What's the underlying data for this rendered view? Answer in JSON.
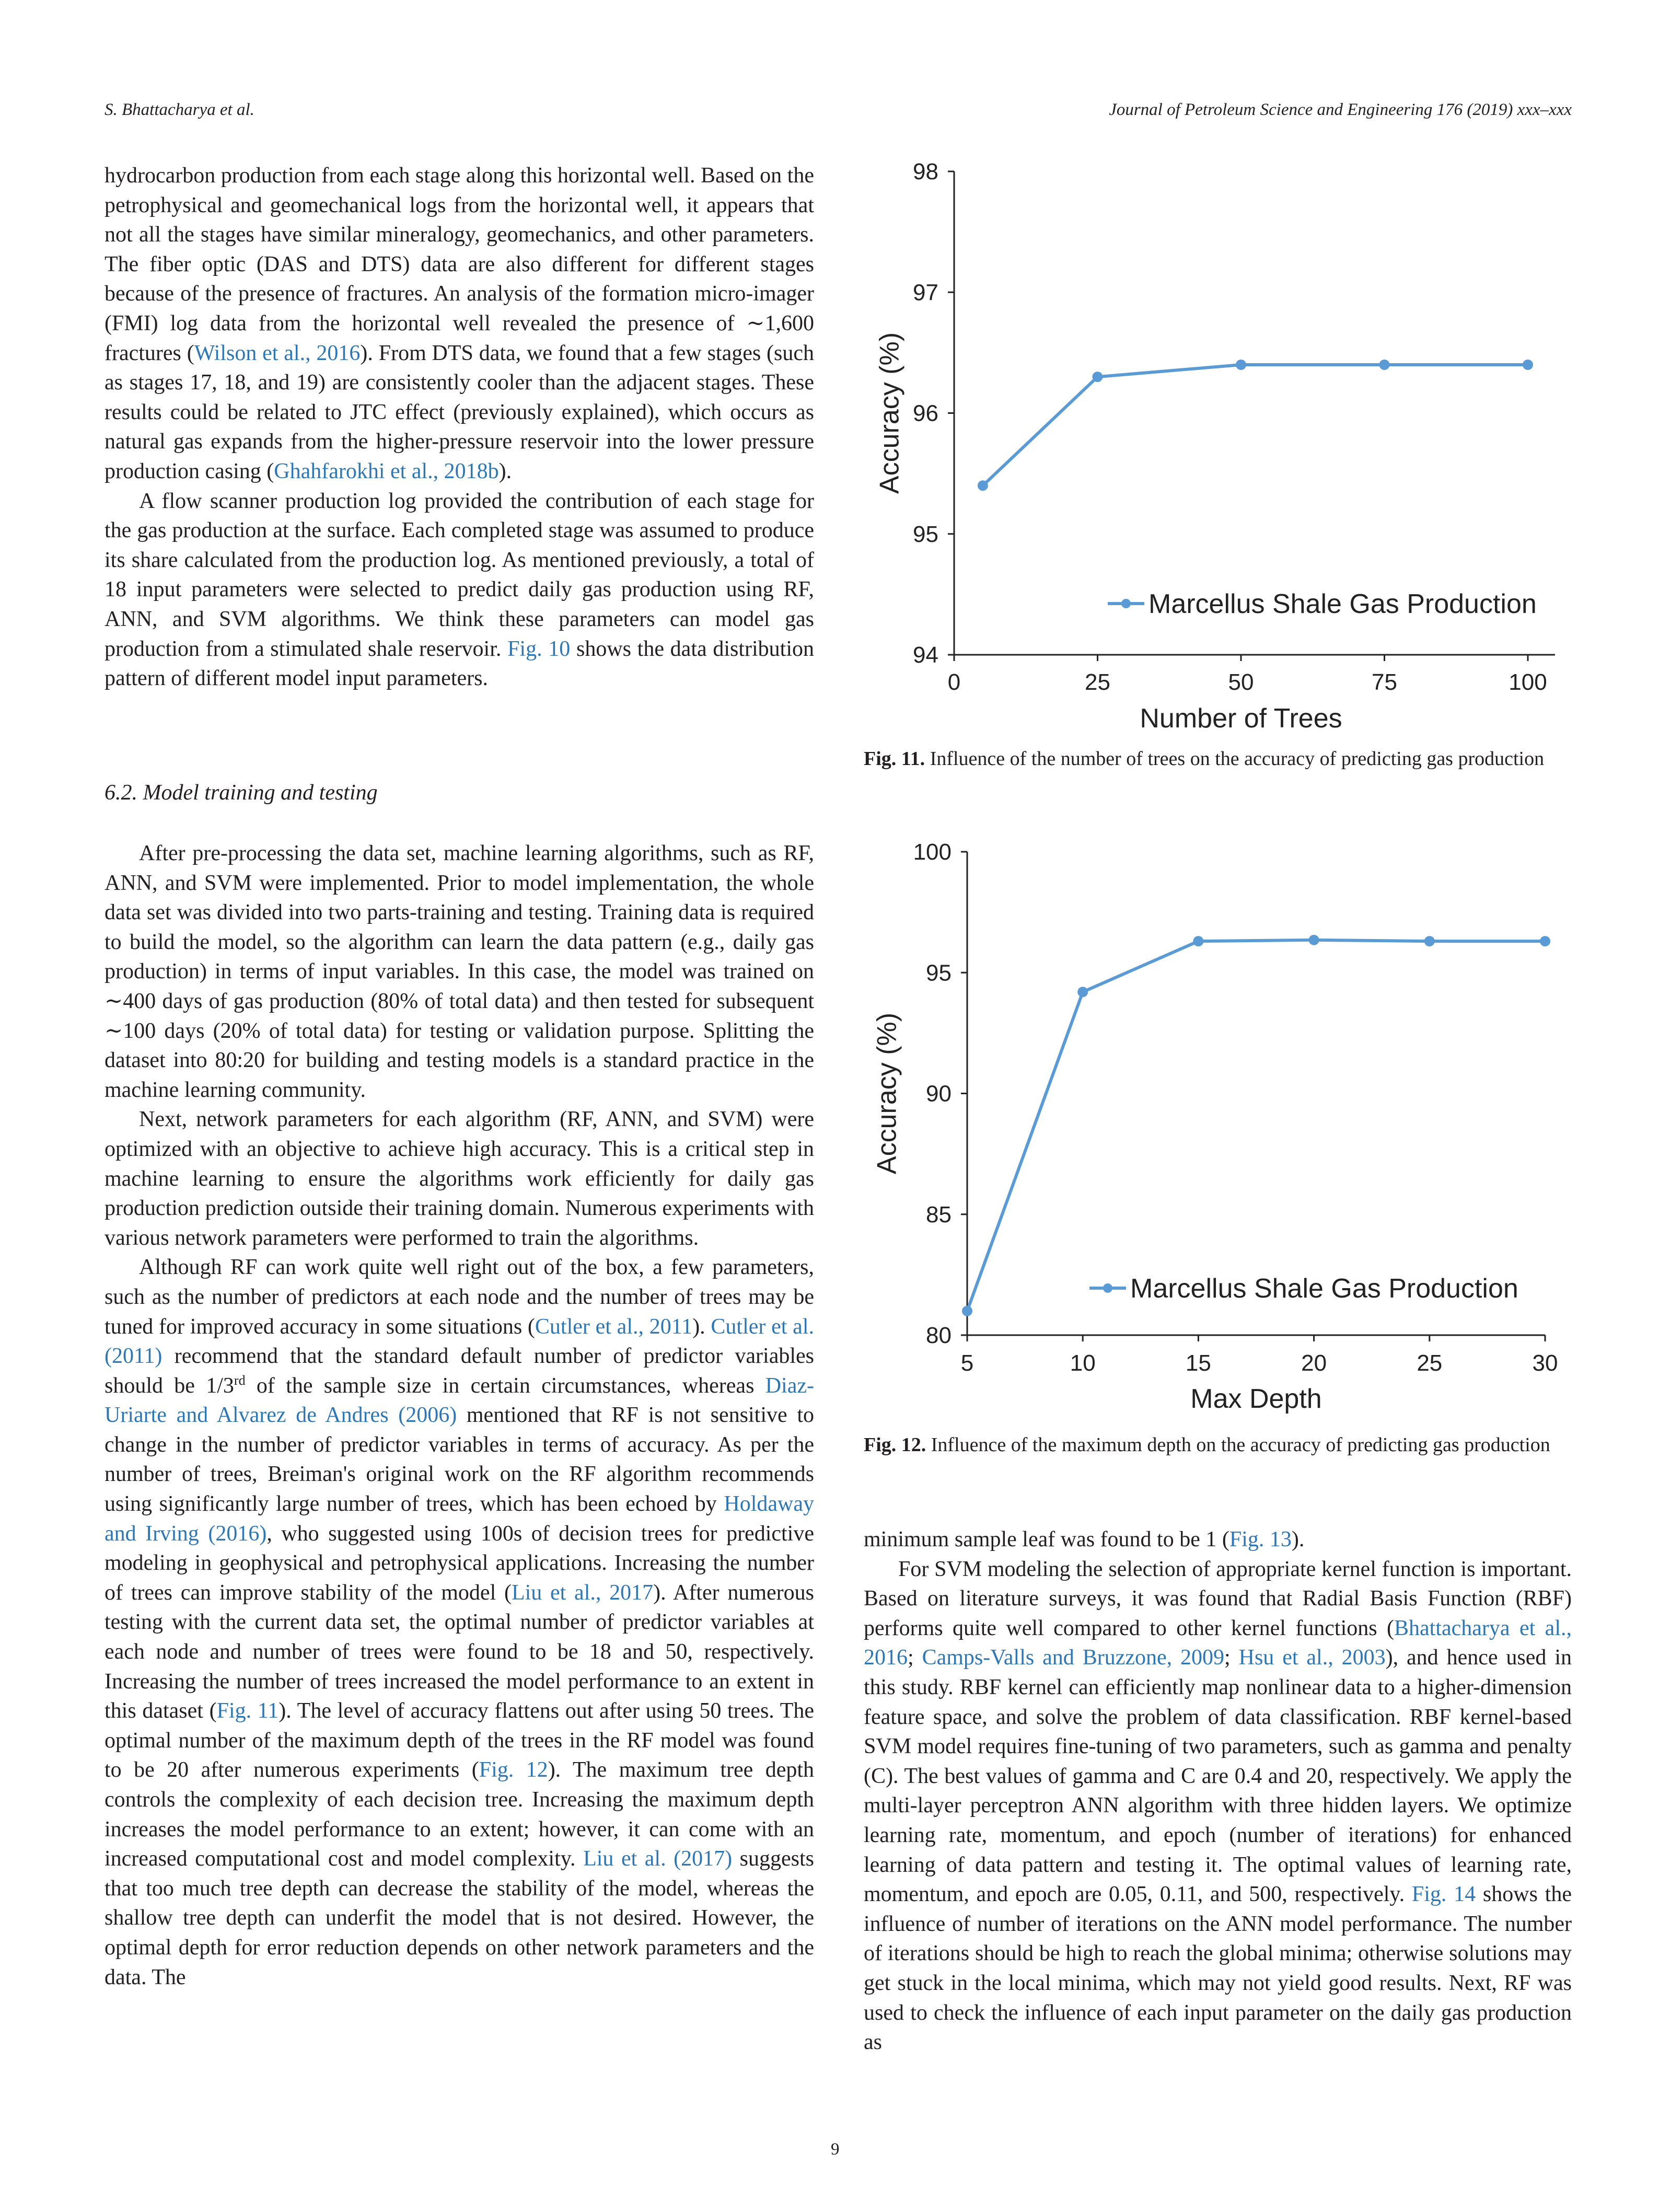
{
  "header": {
    "left": "S. Bhattacharya et al.",
    "right": "Journal of Petroleum Science and Engineering 176 (2019) xxx–xxx"
  },
  "left_column": {
    "paragraphs": [
      {
        "indent": false,
        "segments": [
          {
            "t": "hydrocarbon production from each stage along this horizontal well. Based on the petrophysical and geomechanical logs from the horizontal well, it appears that not all the stages have similar mineralogy, geomechanics, and other parameters. The fiber optic (DAS and DTS) data are also different for different stages because of the presence of fractures. An analysis of the formation micro-imager (FMI) log data from the horizontal well revealed the presence of ∼1,600 fractures ("
          },
          {
            "t": "Wilson et al., 2016",
            "link": true
          },
          {
            "t": "). From DTS data, we found that a few stages (such as stages 17, 18, and 19) are consistently cooler than the adjacent stages. These results could be related to JTC effect (previously explained), which occurs as natural gas expands from the higher-pressure reservoir into the lower pressure production casing ("
          },
          {
            "t": "Ghahfarokhi et al., 2018b",
            "link": true
          },
          {
            "t": ")."
          }
        ]
      },
      {
        "indent": true,
        "segments": [
          {
            "t": "A flow scanner production log provided the contribution of each stage for the gas production at the surface. Each completed stage was assumed to produce its share calculated from the production log. As mentioned previously, a total of 18 input parameters were selected to predict daily gas production using RF, ANN, and SVM algorithms. We think these parameters can model gas production from a stimulated shale reservoir. "
          },
          {
            "t": "Fig. 10",
            "link": true
          },
          {
            "t": " shows the data distribution pattern of different model input parameters."
          }
        ]
      }
    ],
    "section_heading": "6.2.  Model training and testing",
    "paragraphs_after": [
      {
        "indent": true,
        "segments": [
          {
            "t": "After pre-processing the data set, machine learning algorithms, such as RF, ANN, and SVM were implemented. Prior to model implementation, the whole data set was divided into two parts-training and testing. Training data is required to build the model, so the algorithm can learn the data pattern (e.g., daily gas production) in terms of input variables. In this case, the model was trained on ∼400 days of gas production (80% of total data) and then tested for subsequent ∼100 days (20% of total data) for testing or validation purpose. Splitting the dataset into 80:20 for building and testing models is a standard practice in the machine learning community."
          }
        ]
      },
      {
        "indent": true,
        "segments": [
          {
            "t": "Next, network parameters for each algorithm (RF, ANN, and SVM) were optimized with an objective to achieve high accuracy. This is a critical step in machine learning to ensure the algorithms work efficiently for daily gas production prediction outside their training domain. Numerous experiments with various network parameters were performed to train the algorithms."
          }
        ]
      },
      {
        "indent": true,
        "segments": [
          {
            "t": "Although RF can work quite well right out of the box, a few parameters, such as the number of predictors at each node and the number of trees may be tuned for improved accuracy in some situations ("
          },
          {
            "t": "Cutler et al., 2011",
            "link": true
          },
          {
            "t": "). "
          },
          {
            "t": "Cutler et al. (2011)",
            "link": true
          },
          {
            "t": " recommend that the standard default number of predictor variables should be 1/3"
          },
          {
            "t": "rd",
            "sup": true
          },
          {
            "t": " of the sample size in certain circumstances, whereas "
          },
          {
            "t": "Diaz-Uriarte and Alvarez de Andres (2006)",
            "link": true
          },
          {
            "t": " mentioned that RF is not sensitive to change in the number of predictor variables in terms of accuracy. As per the number of trees, Breiman's original work on the RF algorithm recommends using significantly large number of trees, which has been echoed by "
          },
          {
            "t": "Holdaway and Irving (2016)",
            "link": true
          },
          {
            "t": ", who suggested using 100s of decision trees for predictive modeling in geophysical and petrophysical applications. Increasing the number of trees can improve stability of the model ("
          },
          {
            "t": "Liu et al., 2017",
            "link": true
          },
          {
            "t": "). After numerous testing with the current data set, the optimal number of predictor variables at each node and number of trees were found to be 18 and 50, respectively. Increasing the number of trees increased the model performance to an extent in this dataset ("
          },
          {
            "t": "Fig. 11",
            "link": true
          },
          {
            "t": "). The level of accuracy flattens out after using 50 trees. The optimal number of the maximum depth of the trees in the RF model was found to be 20 after numerous experiments ("
          },
          {
            "t": "Fig. 12",
            "link": true
          },
          {
            "t": "). The maximum tree depth controls the complexity of each decision tree. Increasing the maximum depth increases the model performance to an extent; however, it can come with an increased computational cost and model complexity. "
          },
          {
            "t": "Liu et al. (2017)",
            "link": true
          },
          {
            "t": " suggests that too much tree depth can decrease the stability of the model, whereas the shallow tree depth can underfit the model that is not desired. However, the optimal depth for error reduction depends on other network parameters and the data. The"
          }
        ]
      }
    ]
  },
  "right_column": {
    "paragraphs": [
      {
        "indent": false,
        "segments": [
          {
            "t": "minimum sample leaf was found to be 1 ("
          },
          {
            "t": "Fig. 13",
            "link": true
          },
          {
            "t": ")."
          }
        ]
      },
      {
        "indent": true,
        "segments": [
          {
            "t": "For SVM modeling the selection of appropriate kernel function is important. Based on literature surveys, it was found that Radial Basis Function (RBF) performs quite well compared to other kernel functions ("
          },
          {
            "t": "Bhattacharya et al., 2016",
            "link": true
          },
          {
            "t": "; "
          },
          {
            "t": "Camps-Valls and Bruzzone, 2009",
            "link": true
          },
          {
            "t": "; "
          },
          {
            "t": "Hsu et al., 2003",
            "link": true
          },
          {
            "t": "), and hence used in this study. RBF kernel can efficiently map nonlinear data to a higher-dimension feature space, and solve the problem of data classification. RBF kernel-based SVM model requires fine-tuning of two parameters, such as gamma and penalty (C). The best values of gamma and C are 0.4 and 20, respectively. We apply the multi-layer perceptron ANN algorithm with three hidden layers. We optimize learning rate, momentum, and epoch (number of iterations) for enhanced learning of data pattern and testing it. The optimal values of learning rate, momentum, and epoch are 0.05, 0.11, and 500, respectively. "
          },
          {
            "t": "Fig. 14",
            "link": true
          },
          {
            "t": " shows the influence of number of iterations on the ANN model performance. The number of iterations should be high to reach the global minima; otherwise solutions may get stuck in the local minima, which may not yield good results. Next, RF was used to check the influence of each input parameter on the daily gas production as"
          }
        ]
      }
    ]
  },
  "figures": [
    {
      "label": "Fig. 11.",
      "caption": " Influence of the number of trees on the accuracy of predicting gas production"
    },
    {
      "label": "Fig. 12.",
      "caption": " Influence of the maximum depth on the accuracy of predicting gas production"
    }
  ],
  "page_number": "9",
  "colors": {
    "series": "#5b9bd5",
    "link": "#2e77b5"
  },
  "chart_data": [
    {
      "type": "line",
      "title": "",
      "xlabel": "Number of Trees",
      "ylabel": "Accuracy  (%)",
      "x": [
        5,
        25,
        50,
        75,
        100
      ],
      "series": [
        {
          "name": "Marcellus Shale Gas Production",
          "values": [
            95.4,
            96.3,
            96.4,
            96.4,
            96.4
          ]
        }
      ],
      "xlim": [
        0,
        100
      ],
      "ylim": [
        94,
        98
      ],
      "xticks": [
        "0",
        "25",
        "50",
        "75",
        "100"
      ],
      "yticks": [
        "94",
        "95",
        "96",
        "97",
        "98"
      ],
      "grid": false,
      "legend": "bottom-right"
    },
    {
      "type": "line",
      "title": "",
      "xlabel": "Max Depth",
      "ylabel": "Accuracy  (%)",
      "x": [
        5,
        10,
        15,
        20,
        25,
        30
      ],
      "series": [
        {
          "name": "Marcellus Shale Gas Production",
          "values": [
            81.0,
            94.2,
            96.3,
            96.35,
            96.3,
            96.3
          ]
        }
      ],
      "xlim": [
        5,
        30
      ],
      "ylim": [
        80,
        100
      ],
      "xticks": [
        "5",
        "10",
        "15",
        "20",
        "25",
        "30"
      ],
      "yticks": [
        "80",
        "85",
        "90",
        "95",
        "100"
      ],
      "grid": false,
      "legend": "bottom-right"
    }
  ]
}
